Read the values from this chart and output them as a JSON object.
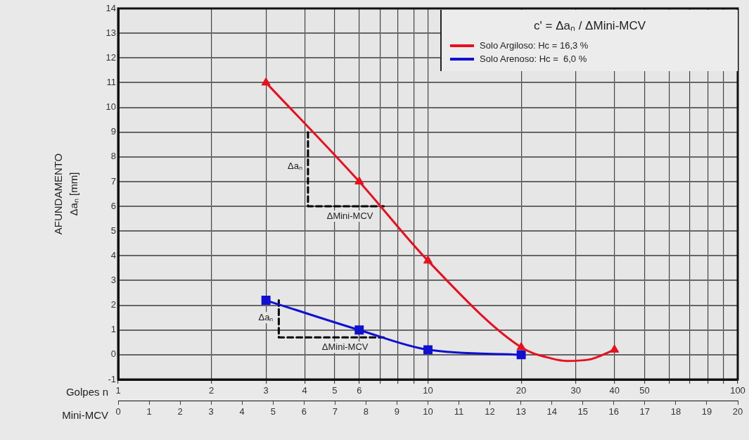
{
  "chart_data": {
    "type": "line",
    "xlabel": "Golpes n",
    "x2label": "Mini-MCV",
    "ylabel": "AFUNDAMENTO\nΔaₙ [mm]",
    "log": "x",
    "grid": true,
    "legend": "top right",
    "xlim": [
      1,
      100
    ],
    "xticks": [
      1,
      2,
      3,
      4,
      5,
      6,
      {
        "value": 7,
        "label": null
      },
      {
        "value": 8,
        "label": null
      },
      {
        "value": 9,
        "label": null
      },
      10,
      20,
      30,
      40,
      50,
      {
        "value": 60,
        "label": null
      },
      {
        "value": 70,
        "label": null
      },
      {
        "value": 80,
        "label": null
      },
      {
        "value": 90,
        "label": null
      },
      100
    ],
    "x2lim": [
      0,
      20
    ],
    "x2ticks": [
      0,
      1,
      2,
      3,
      4,
      5,
      6,
      7,
      8,
      9,
      10,
      11,
      12,
      13,
      14,
      15,
      16,
      17,
      18,
      19,
      20
    ],
    "ylim": [
      -1,
      14
    ],
    "yticks": [
      -1,
      0,
      1,
      2,
      3,
      4,
      5,
      6,
      7,
      8,
      9,
      10,
      11,
      12,
      13,
      14
    ],
    "series": [
      {
        "name": "Solo Argiloso: Hc = 16,3 %",
        "color": "#e8101e",
        "marker": "none",
        "x": [
          3,
          6,
          10,
          20,
          25,
          28,
          33,
          40
        ],
        "values": [
          11,
          7.0,
          3.8,
          0.3,
          -0.15,
          -0.25,
          -0.2,
          0.2
        ]
      },
      {
        "type": "scatter",
        "color": "#e8101e",
        "marker": "triangle",
        "x": [
          3,
          6,
          10,
          20,
          40
        ],
        "values": [
          11,
          7.0,
          3.8,
          0.3,
          0.2
        ]
      },
      {
        "name": "Solo Arenoso: Hc =  6,0 %",
        "color": "#1010d0",
        "marker": "square",
        "x": [
          3,
          6,
          10,
          20
        ],
        "values": [
          2.2,
          1.0,
          0.2,
          0
        ]
      },
      {
        "type": "line",
        "color": "#000000",
        "marker": "none",
        "line_style": "dashed",
        "x": [
          4.1,
          4.1,
          7.2
        ],
        "values": [
          9,
          6,
          6
        ]
      },
      {
        "type": "line",
        "color": "#000000",
        "marker": "none",
        "line_style": "dashed",
        "x": [
          3.3,
          3.3,
          7.2
        ],
        "values": [
          2.2,
          0.7,
          0.7
        ]
      }
    ],
    "annotations": [
      "c' = Δaₙ / ΔMini-MCV",
      {
        "text": "Δaₙ",
        "x": 4.1,
        "y": 7.6
      },
      {
        "text": "ΔMini-MCV",
        "x": 5.6,
        "y": 6
      },
      {
        "text": "Δaₙ",
        "x": 3.3,
        "y": 1.5
      },
      {
        "text": "ΔMini-MCV",
        "x": 5.4,
        "y": 0.7
      }
    ]
  }
}
